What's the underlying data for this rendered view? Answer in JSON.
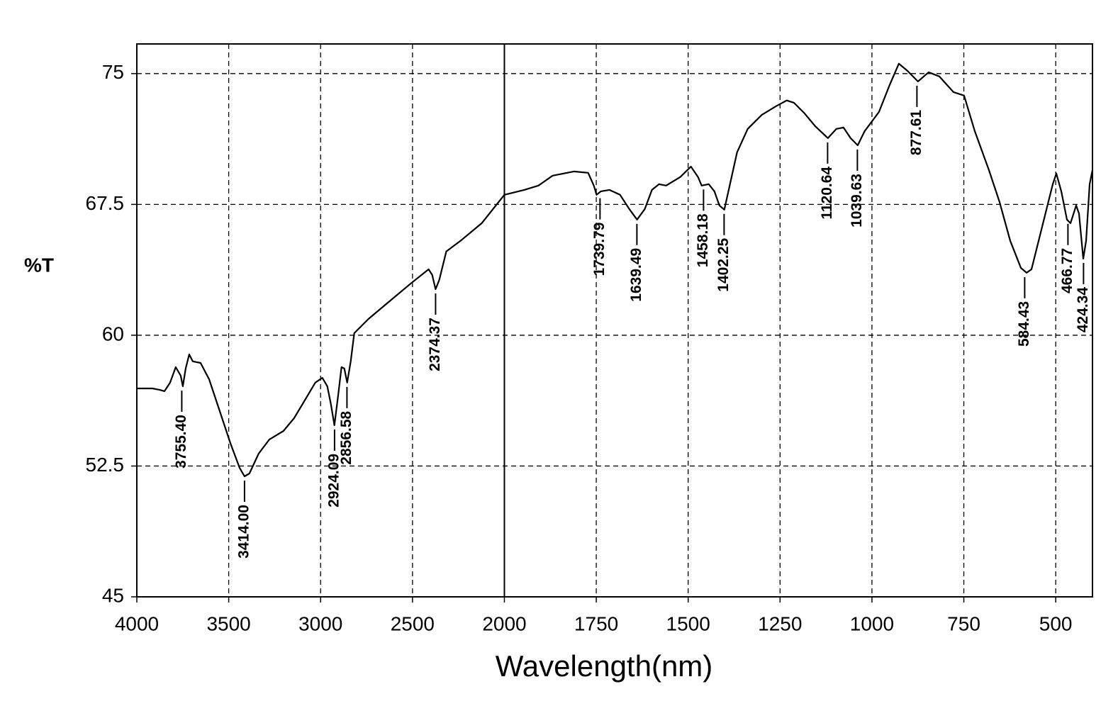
{
  "chart_data": {
    "type": "line",
    "xlabel": "Wavelength(nm)",
    "ylabel": "%T",
    "color": "#000000",
    "grid": true,
    "xaxis": [
      {
        "xlim": [
          4000,
          2000
        ],
        "xticks": [
          4000,
          3500,
          3000,
          2500,
          2000
        ]
      },
      {
        "xlim": [
          2000,
          400
        ],
        "xticks": [
          1750,
          1500,
          1250,
          1000,
          750,
          500
        ]
      }
    ],
    "ylim": [
      45,
      76.7
    ],
    "yticks": [
      75,
      67.5,
      60,
      52.5,
      45
    ],
    "x": [
      4000,
      3915.2,
      3876.7,
      3849.7,
      3818.9,
      3788.1,
      3761.1,
      3749.5,
      3734.1,
      3714.8,
      3695.6,
      3653.2,
      3606.9,
      3549.1,
      3491.3,
      3441.2,
      3414,
      3387.3,
      3337.2,
      3279.4,
      3202.3,
      3144.5,
      3086.7,
      3028.9,
      2990.4,
      2963.4,
      2944.1,
      2924.9,
      2905.6,
      2886.3,
      2870.9,
      2855.5,
      2836.2,
      2817,
      2739.9,
      2624.3,
      2508.7,
      2412.3,
      2393.1,
      2374.4,
      2354.5,
      2316,
      2238.9,
      2123.3,
      2046.2,
      2000,
      1946,
      1907.4,
      1868.8,
      1810.9,
      1772.2,
      1756.8,
      1749.1,
      1737.4,
      1714.3,
      1685.4,
      1660.3,
      1639.1,
      1617.8,
      1598.5,
      1579.2,
      1559.9,
      1521.3,
      1492.4,
      1473.1,
      1463.4,
      1444.1,
      1428.7,
      1415.2,
      1401.7,
      1386.2,
      1366.9,
      1337.9,
      1299.4,
      1260.8,
      1231.8,
      1212.5,
      1183.5,
      1154.6,
      1119.9,
      1096.7,
      1077.4,
      1058.1,
      1038.8,
      1019.5,
      980.9,
      951.9,
      926.8,
      903.7,
      874.8,
      845.8,
      816.8,
      778.2,
      749.3,
      720.3,
      681.7,
      652.8,
      623.8,
      594.9,
      579.4,
      565.9,
      537,
      508,
      498.4,
      484.9,
      469.4,
      459.8,
      444.4,
      436.6,
      425,
      417.3,
      407.7,
      400
    ],
    "values": [
      56.95,
      56.95,
      56.87,
      56.79,
      57.28,
      58.17,
      57.68,
      57.07,
      58.09,
      58.9,
      58.5,
      58.41,
      57.48,
      55.65,
      53.82,
      52.4,
      51.91,
      52.07,
      53.21,
      54.02,
      54.51,
      55.24,
      56.26,
      57.28,
      57.56,
      57.07,
      56.06,
      54.84,
      56.46,
      58.17,
      58.09,
      57.28,
      58.5,
      60.12,
      60.93,
      61.95,
      62.97,
      63.78,
      63.46,
      62.64,
      63.17,
      64.8,
      65.41,
      66.42,
      67.44,
      68.05,
      68.33,
      68.58,
      69.15,
      69.39,
      69.31,
      68.58,
      68.05,
      68.25,
      68.33,
      68.05,
      67.24,
      66.63,
      67.24,
      68.33,
      68.66,
      68.58,
      69.07,
      69.67,
      69.07,
      68.58,
      68.66,
      68.25,
      67.44,
      67.2,
      68.66,
      70.49,
      71.83,
      72.64,
      73.13,
      73.46,
      73.33,
      72.72,
      71.99,
      71.3,
      71.83,
      71.91,
      71.3,
      70.89,
      71.71,
      72.8,
      74.35,
      75.57,
      75.16,
      74.55,
      75.08,
      74.84,
      73.94,
      73.74,
      71.71,
      69.47,
      67.64,
      65.41,
      63.86,
      63.58,
      63.78,
      66.22,
      68.66,
      69.27,
      68.25,
      66.63,
      66.42,
      67.44,
      66.97,
      64.39,
      65.41,
      68.66,
      69.47
    ],
    "peaks": [
      {
        "x": {
          "value": 3755.4,
          "label": "3755.40"
        },
        "y": 57.07
      },
      {
        "x": {
          "value": 3414,
          "label": "3414.00"
        },
        "y": 51.91
      },
      {
        "x": {
          "value": 2924.09,
          "label": "2924.09"
        },
        "y": 54.84
      },
      {
        "x": {
          "value": 2856.58,
          "label": "2856.58"
        },
        "y": 57.28
      },
      {
        "x": {
          "value": 2374.37,
          "label": "2374.37"
        },
        "y": 62.64
      },
      {
        "x": {
          "value": 1739.79,
          "label": "1739.79"
        },
        "y": 68.1
      },
      {
        "x": {
          "value": 1639.49,
          "label": "1639.49"
        },
        "y": 66.63
      },
      {
        "x": {
          "value": 1458.18,
          "label": "1458.18"
        },
        "y": 68.6
      },
      {
        "x": {
          "value": 1402.25,
          "label": "1402.25"
        },
        "y": 67.2
      },
      {
        "x": {
          "value": 1120.64,
          "label": "1120.64"
        },
        "y": 71.3
      },
      {
        "x": {
          "value": 1039.63,
          "label": "1039.63"
        },
        "y": 70.89
      },
      {
        "x": {
          "value": 877.61,
          "label": "877.61"
        },
        "y": 74.55
      },
      {
        "x": {
          "value": 584.43,
          "label": "584.43"
        },
        "y": 63.58
      },
      {
        "x": {
          "value": 466.77,
          "label": "466.77"
        },
        "y": 66.63
      },
      {
        "x": {
          "value": 424.34,
          "label": "424.34"
        },
        "y": 64.39
      }
    ]
  }
}
